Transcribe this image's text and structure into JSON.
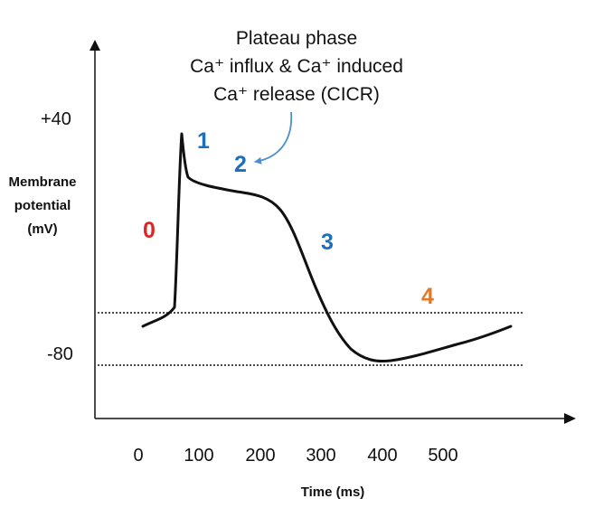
{
  "annotation": {
    "line1": "Plateau phase",
    "line2": "Ca⁺ influx & Ca⁺ induced",
    "line3": "Ca⁺ release (CICR)"
  },
  "y_axis": {
    "title_line1": "Membrane",
    "title_line2": "potential",
    "title_line3": "(mV)",
    "ticks": [
      "+40",
      "-80"
    ]
  },
  "x_axis": {
    "title": "Time (ms)",
    "ticks": [
      "0",
      "100",
      "200",
      "300",
      "400",
      "500"
    ]
  },
  "phases": [
    {
      "label": "0",
      "color": "#e02424"
    },
    {
      "label": "1",
      "color": "#1f6fb8"
    },
    {
      "label": "2",
      "color": "#1f6fb8"
    },
    {
      "label": "3",
      "color": "#1f6fb8"
    },
    {
      "label": "4",
      "color": "#e07a2a"
    }
  ],
  "colors": {
    "curve": "#111111",
    "arrow": "#4a90d0",
    "axis": "#111111"
  }
}
